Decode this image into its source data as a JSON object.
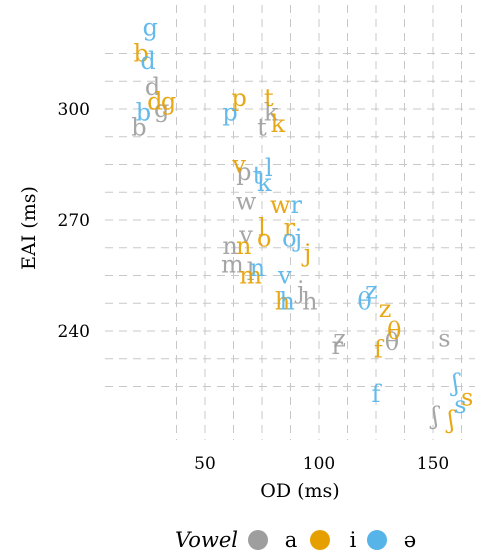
{
  "chart_data": {
    "type": "scatter",
    "xlabel": "OD (ms)",
    "ylabel": "EAI (ms)",
    "xticks": [
      50,
      100,
      150
    ],
    "yticks": [
      240,
      270,
      300
    ],
    "xlim": [
      25,
      165
    ],
    "ylim": [
      212,
      318
    ],
    "grid": true,
    "legend": {
      "title": "Vowel",
      "placement": "bottom"
    },
    "series": [
      {
        "name": "a",
        "color": "#9e9e9e",
        "points": [
          {
            "label": "d",
            "x": 27,
            "y": 306
          },
          {
            "label": "g",
            "x": 31,
            "y": 300
          },
          {
            "label": "b",
            "x": 21,
            "y": 295
          },
          {
            "label": "k",
            "x": 79,
            "y": 299
          },
          {
            "label": "t",
            "x": 75,
            "y": 295
          },
          {
            "label": "p",
            "x": 67,
            "y": 283
          },
          {
            "label": "w",
            "x": 68,
            "y": 275
          },
          {
            "label": "v",
            "x": 68,
            "y": 266
          },
          {
            "label": "n",
            "x": 61,
            "y": 263
          },
          {
            "label": "m",
            "x": 62,
            "y": 258
          },
          {
            "label": "l",
            "x": 70,
            "y": 256
          },
          {
            "label": "j",
            "x": 92,
            "y": 251
          },
          {
            "label": "h",
            "x": 96,
            "y": 248
          },
          {
            "label": "z",
            "x": 109,
            "y": 238
          },
          {
            "label": "r",
            "x": 108,
            "y": 236
          },
          {
            "label": "θ",
            "x": 132,
            "y": 237
          },
          {
            "label": "s",
            "x": 155,
            "y": 238
          },
          {
            "label": "ʃ",
            "x": 151,
            "y": 217
          }
        ]
      },
      {
        "name": "i",
        "color": "#e69f00",
        "points": [
          {
            "label": "b",
            "x": 22,
            "y": 315
          },
          {
            "label": "d",
            "x": 28,
            "y": 302
          },
          {
            "label": "g",
            "x": 34,
            "y": 302
          },
          {
            "label": "p",
            "x": 65,
            "y": 303
          },
          {
            "label": "t",
            "x": 78,
            "y": 303
          },
          {
            "label": "k",
            "x": 82,
            "y": 296
          },
          {
            "label": "v",
            "x": 65,
            "y": 285
          },
          {
            "label": "w",
            "x": 83,
            "y": 274
          },
          {
            "label": "l",
            "x": 75,
            "y": 268
          },
          {
            "label": "r",
            "x": 87,
            "y": 268
          },
          {
            "label": "o",
            "x": 76,
            "y": 265
          },
          {
            "label": "n",
            "x": 67,
            "y": 263
          },
          {
            "label": "j",
            "x": 95,
            "y": 261
          },
          {
            "label": "m",
            "x": 70,
            "y": 255
          },
          {
            "label": "h",
            "x": 84,
            "y": 248
          },
          {
            "label": "z",
            "x": 129,
            "y": 246
          },
          {
            "label": "θ",
            "x": 133,
            "y": 240
          },
          {
            "label": "f",
            "x": 126,
            "y": 235
          },
          {
            "label": "s",
            "x": 165,
            "y": 222
          },
          {
            "label": "ʃ",
            "x": 158,
            "y": 216
          }
        ]
      },
      {
        "name": "ə",
        "color": "#56b4e9",
        "points": [
          {
            "label": "g",
            "x": 26,
            "y": 322
          },
          {
            "label": "d",
            "x": 25,
            "y": 313
          },
          {
            "label": "b",
            "x": 23,
            "y": 299
          },
          {
            "label": "p",
            "x": 61,
            "y": 299
          },
          {
            "label": "t",
            "x": 73,
            "y": 282
          },
          {
            "label": "l",
            "x": 78,
            "y": 284
          },
          {
            "label": "k",
            "x": 76,
            "y": 280
          },
          {
            "label": "r",
            "x": 90,
            "y": 274
          },
          {
            "label": "o",
            "x": 87,
            "y": 265
          },
          {
            "label": "j",
            "x": 91,
            "y": 265
          },
          {
            "label": "n",
            "x": 73,
            "y": 257
          },
          {
            "label": "v",
            "x": 85,
            "y": 255
          },
          {
            "label": "h",
            "x": 86,
            "y": 248
          },
          {
            "label": "z",
            "x": 123,
            "y": 251
          },
          {
            "label": "θ",
            "x": 120,
            "y": 248
          },
          {
            "label": "f",
            "x": 125,
            "y": 223
          },
          {
            "label": "ʃ",
            "x": 160,
            "y": 226
          },
          {
            "label": "s",
            "x": 162,
            "y": 220
          }
        ]
      }
    ]
  }
}
